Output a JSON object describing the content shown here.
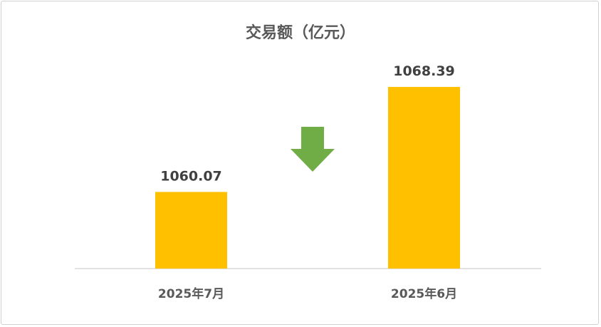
{
  "chart_data": {
    "type": "bar",
    "title": "交易额（亿元）",
    "categories": [
      "2025年7月",
      "2025年6月"
    ],
    "values": [
      1060.07,
      1068.39
    ],
    "data_labels": [
      "1060.07",
      "1068.39"
    ],
    "ylim": [
      1054,
      1070
    ],
    "grid": false,
    "legend": "none",
    "bar_color": "#FFC000",
    "axis_color": "#D9D9D9",
    "annotation": {
      "icon": "arrow-down-icon",
      "color": "#70AD47",
      "meaning": "decrease"
    }
  }
}
